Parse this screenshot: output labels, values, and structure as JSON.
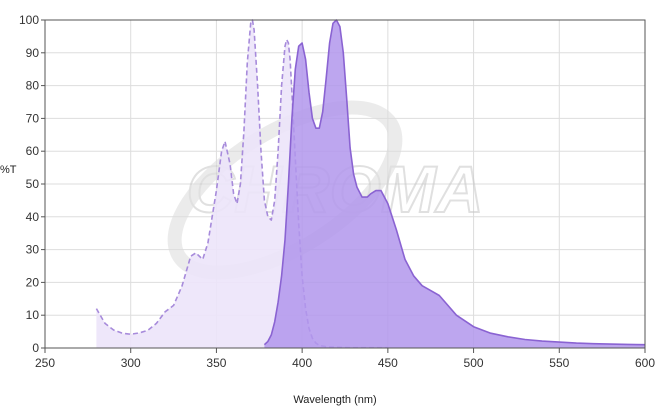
{
  "chart_data": {
    "type": "area",
    "xlabel": "Wavelength (nm)",
    "ylabel": "%T",
    "xlim": [
      250,
      600
    ],
    "ylim": [
      0,
      100
    ],
    "x_ticks": [
      "250",
      "300",
      "350",
      "400",
      "450",
      "500",
      "550",
      "600"
    ],
    "y_ticks": [
      "0",
      "10",
      "20",
      "30",
      "40",
      "50",
      "60",
      "70",
      "80",
      "90",
      "100"
    ],
    "grid": true,
    "legend": "none",
    "watermark": "CHROMA",
    "series": [
      {
        "style": "dashed-light-fill",
        "color": "#a78bdb",
        "fill": "#ece4f9",
        "x": [
          280,
          285,
          290,
          295,
          300,
          305,
          310,
          315,
          320,
          325,
          330,
          335,
          338,
          342,
          345,
          350,
          353,
          355,
          358,
          360,
          362,
          364,
          366,
          368,
          370,
          371,
          372,
          374,
          376,
          378,
          380,
          382,
          384,
          386,
          388,
          390,
          391,
          392,
          393,
          394,
          396,
          398,
          400,
          402,
          404,
          406,
          408,
          410,
          415,
          420,
          430,
          440,
          450
        ],
        "y": [
          12,
          7.5,
          5.5,
          4.5,
          4.2,
          4.6,
          5.4,
          7.5,
          11,
          13,
          19,
          28,
          29,
          27,
          32,
          48,
          60,
          63,
          56,
          47,
          44,
          50,
          66,
          87,
          99,
          100,
          97,
          80,
          60,
          45,
          40,
          39,
          45,
          60,
          80,
          92,
          94,
          93,
          88,
          78,
          58,
          38,
          22,
          12,
          6,
          3,
          1.5,
          0.8,
          0.3,
          0.2,
          0.1,
          0.1,
          0.1
        ]
      },
      {
        "style": "solid-dark-fill",
        "color": "#8a63d2",
        "fill": "#b297ec",
        "x": [
          378,
          380,
          382,
          384,
          386,
          388,
          390,
          392,
          394,
          396,
          398,
          400,
          402,
          404,
          406,
          408,
          410,
          412,
          414,
          416,
          418,
          420,
          422,
          424,
          426,
          428,
          430,
          432,
          435,
          438,
          440,
          443,
          446,
          450,
          455,
          460,
          465,
          470,
          475,
          480,
          485,
          490,
          500,
          510,
          520,
          530,
          540,
          550,
          560,
          570,
          580,
          590,
          600
        ],
        "y": [
          1,
          2,
          4,
          8,
          14,
          22,
          33,
          50,
          70,
          85,
          92,
          93,
          88,
          78,
          70,
          67,
          67,
          72,
          82,
          93,
          99,
          100,
          98,
          90,
          76,
          61,
          53,
          49,
          46,
          46,
          47,
          48,
          48,
          44,
          36,
          27,
          22,
          19,
          17.5,
          16,
          13,
          10,
          6.5,
          4.5,
          3.4,
          2.6,
          2.1,
          1.8,
          1.5,
          1.3,
          1.2,
          1.1,
          1
        ]
      }
    ]
  }
}
